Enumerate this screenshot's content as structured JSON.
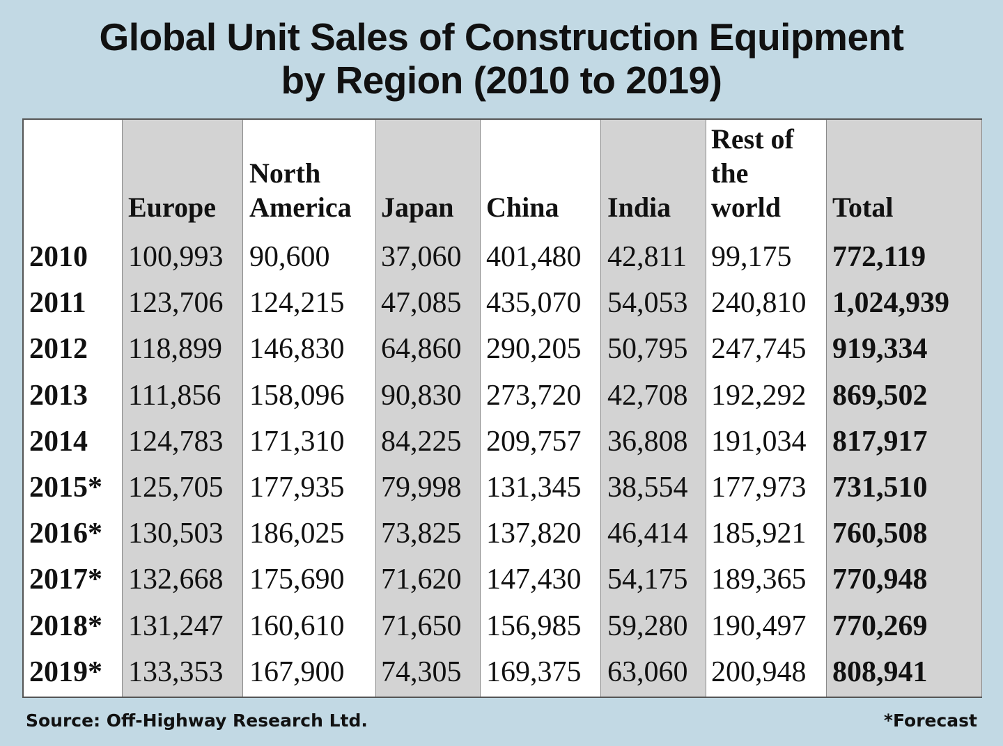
{
  "colors": {
    "background": "#c2d9e4",
    "shaded_column": "#d3d3d3",
    "table": "#ffffff"
  },
  "chart_data": {
    "type": "table",
    "title_line1": "Global Unit Sales of Construction Equipment",
    "title_line2": "by Region (2010 to 2019)",
    "columns": [
      {
        "key": "year",
        "label": [
          ""
        ]
      },
      {
        "key": "europe",
        "label": [
          "Europe"
        ]
      },
      {
        "key": "north_america",
        "label": [
          "North",
          "America"
        ]
      },
      {
        "key": "japan",
        "label": [
          "Japan"
        ]
      },
      {
        "key": "china",
        "label": [
          "China"
        ]
      },
      {
        "key": "india",
        "label": [
          "India"
        ]
      },
      {
        "key": "rest",
        "label": [
          "Rest of",
          "the",
          "world"
        ]
      },
      {
        "key": "total",
        "label": [
          "Total"
        ]
      }
    ],
    "rows": [
      [
        "2010",
        "100,993",
        "90,600",
        "37,060",
        "401,480",
        "42,811",
        "99,175",
        "772,119"
      ],
      [
        "2011",
        "123,706",
        "124,215",
        "47,085",
        "435,070",
        "54,053",
        "240,810",
        "1,024,939"
      ],
      [
        "2012",
        "118,899",
        "146,830",
        "64,860",
        "290,205",
        "50,795",
        "247,745",
        "919,334"
      ],
      [
        "2013",
        "111,856",
        "158,096",
        "90,830",
        "273,720",
        "42,708",
        "192,292",
        "869,502"
      ],
      [
        "2014",
        "124,783",
        "171,310",
        "84,225",
        "209,757",
        "36,808",
        "191,034",
        "817,917"
      ],
      [
        "2015*",
        "125,705",
        "177,935",
        "79,998",
        "131,345",
        "38,554",
        "177,973",
        "731,510"
      ],
      [
        "2016*",
        "130,503",
        "186,025",
        "73,825",
        "137,820",
        "46,414",
        "185,921",
        "760,508"
      ],
      [
        "2017*",
        "132,668",
        "175,690",
        "71,620",
        "147,430",
        "54,175",
        "189,365",
        "770,948"
      ],
      [
        "2018*",
        "131,247",
        "160,610",
        "71,650",
        "156,985",
        "59,280",
        "190,497",
        "770,269"
      ],
      [
        "2019*",
        "133,353",
        "167,900",
        "74,305",
        "169,375",
        "63,060",
        "200,948",
        "808,941"
      ]
    ],
    "source": "Source: Off-Highway Research Ltd.",
    "note": "*Forecast"
  }
}
